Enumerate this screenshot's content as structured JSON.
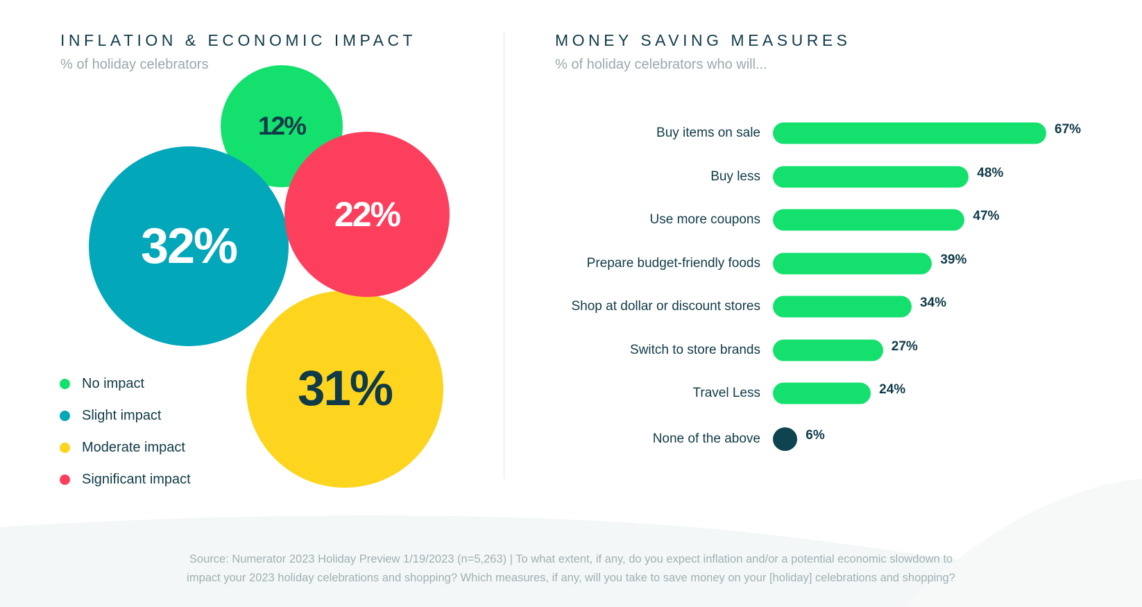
{
  "left_panel": {
    "title": "INFLATION & ECONOMIC IMPACT",
    "subtitle": "% of holiday celebrators"
  },
  "right_panel": {
    "title": "MONEY SAVING MEASURES",
    "subtitle": "% of holiday celebrators who will..."
  },
  "chart_data": [
    {
      "type": "bubble",
      "title": "INFLATION & ECONOMIC IMPACT",
      "subtitle": "% of holiday celebrators",
      "categories": [
        "No impact",
        "Slight impact",
        "Moderate impact",
        "Significant impact"
      ],
      "values": [
        12,
        32,
        31,
        22
      ],
      "value_labels": [
        "12%",
        "32%",
        "31%",
        "22%"
      ],
      "colors": [
        "#14e06e",
        "#03a7ba",
        "#fdd51e",
        "#fd3f5e"
      ],
      "text_colors": [
        "#103a48",
        "#ffffff",
        "#103a48",
        "#ffffff"
      ],
      "legend": {
        "position": "bottom-left",
        "order": [
          0,
          1,
          2,
          3
        ]
      }
    },
    {
      "type": "bar",
      "orientation": "horizontal",
      "title": "MONEY SAVING MEASURES",
      "subtitle": "% of holiday celebrators who will...",
      "categories": [
        "Buy items on sale",
        "Buy less",
        "Use more coupons",
        "Prepare budget-friendly foods",
        "Shop at dollar or discount stores",
        "Switch to store brands",
        "Travel Less",
        "None of the above"
      ],
      "values": [
        67,
        48,
        47,
        39,
        34,
        27,
        24,
        6
      ],
      "value_labels": [
        "67%",
        "48%",
        "47%",
        "39%",
        "34%",
        "27%",
        "24%",
        "6%"
      ],
      "colors": [
        "#14e06e",
        "#14e06e",
        "#14e06e",
        "#14e06e",
        "#14e06e",
        "#14e06e",
        "#14e06e",
        "#0d4450"
      ],
      "xlim": [
        0,
        67
      ],
      "grid": false
    }
  ],
  "source_note": {
    "line1": "Source: Numerator 2023 Holiday Preview 1/19/2023 (n=5,263) | To what extent, if any, do you expect inflation and/or a potential economic slowdown to",
    "line2": "impact your 2023 holiday celebrations and shopping? Which measures, if any, will you take to save money on your [holiday] celebrations and shopping?"
  }
}
